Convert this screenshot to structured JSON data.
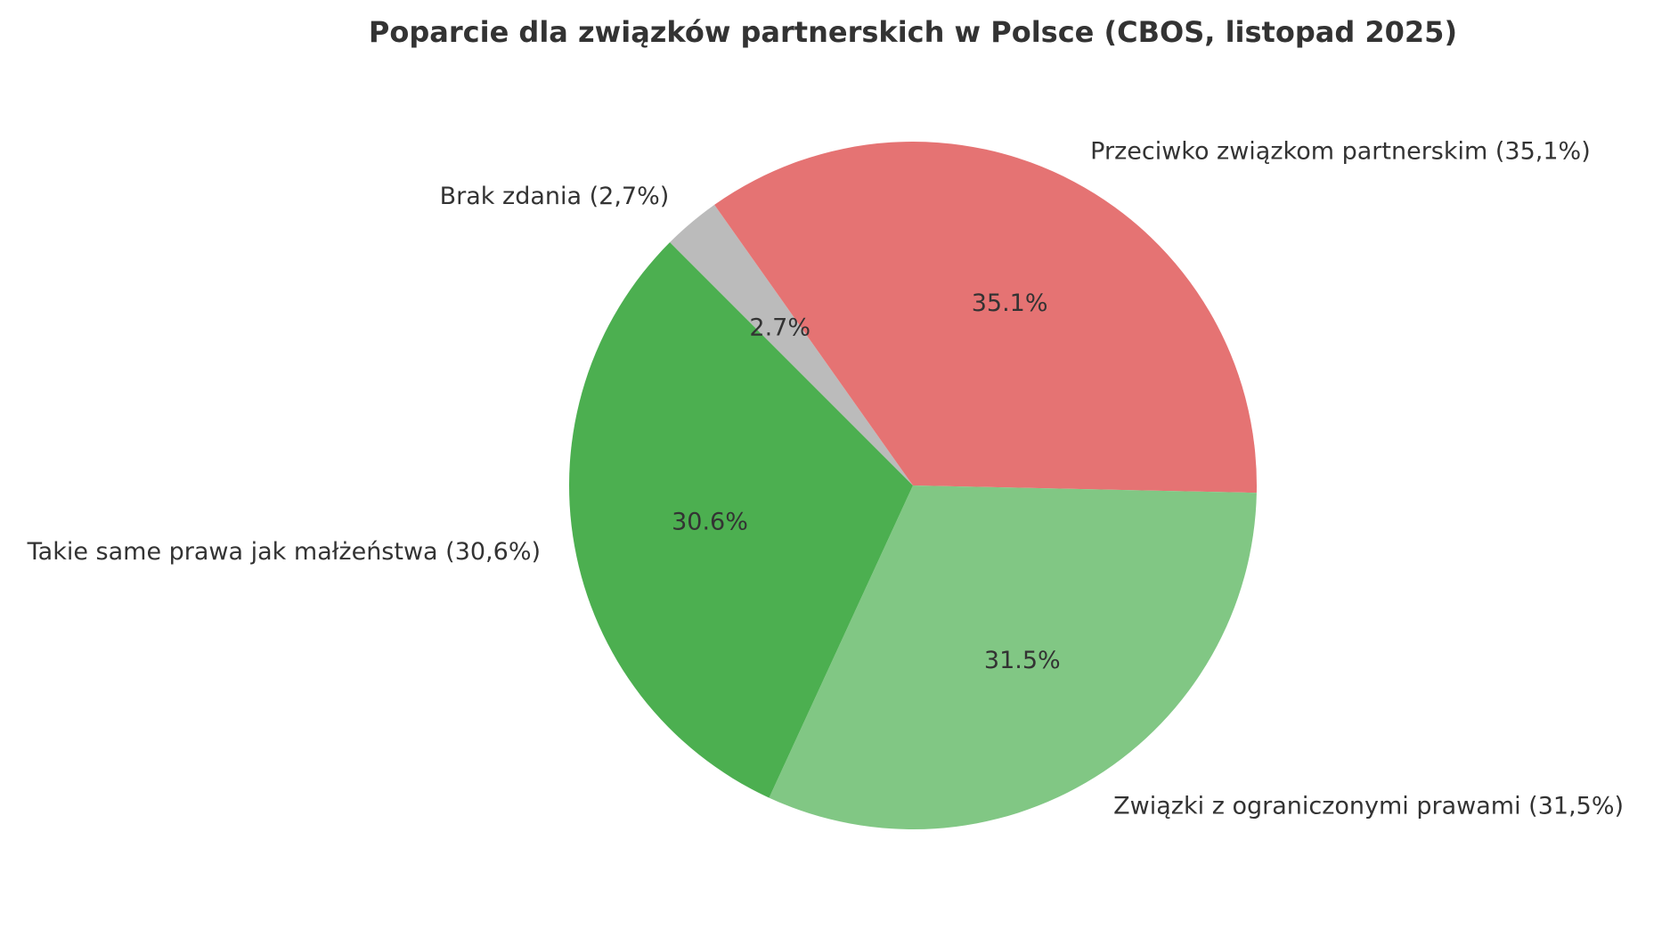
{
  "chart_data": {
    "type": "pie",
    "title": "Poparcie dla związków partnerskich w Polsce (CBOS, listopad 2025)",
    "start_angle_deg": 135,
    "direction": "clockwise",
    "slices": [
      {
        "label": "Brak zdania (2,7%)",
        "value": 2.7,
        "pct_label": "2.7%",
        "color": "#bbbbbb"
      },
      {
        "label": "Przeciwko związkom partnerskim (35,1%)",
        "value": 35.1,
        "pct_label": "35.1%",
        "color": "#e57373"
      },
      {
        "label": "Związki z ograniczonymi prawami (31,5%)",
        "value": 31.5,
        "pct_label": "31.5%",
        "color": "#81c784"
      },
      {
        "label": "Takie same prawa jak małżeństwa (30,6%)",
        "value": 30.6,
        "pct_label": "30.6%",
        "color": "#4caf50"
      }
    ]
  }
}
